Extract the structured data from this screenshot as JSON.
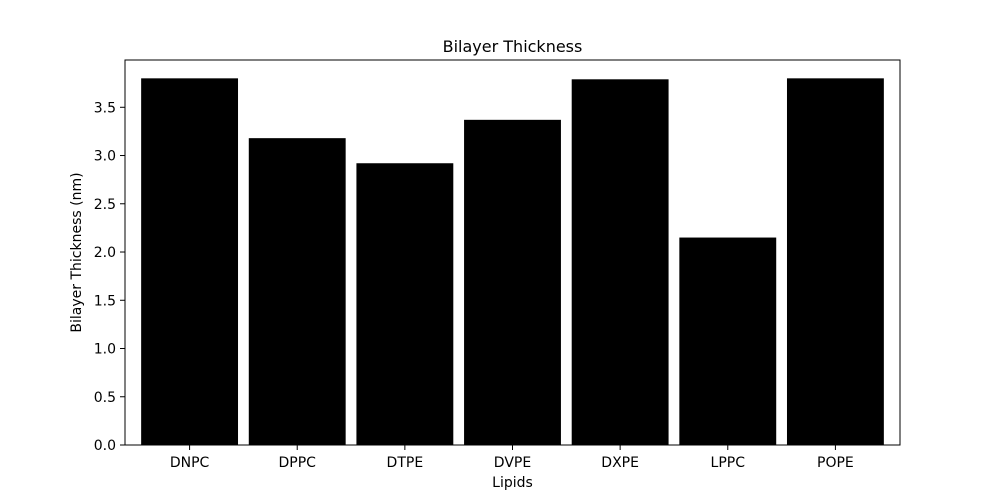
{
  "chart_data": {
    "type": "bar",
    "title": "Bilayer Thickness",
    "xlabel": "Lipids",
    "ylabel": "Bilayer Thickness (nm)",
    "categories": [
      "DNPC",
      "DPPC",
      "DTPE",
      "DVPE",
      "DXPE",
      "LPPC",
      "POPE"
    ],
    "values": [
      3.8,
      3.18,
      2.92,
      3.37,
      3.79,
      2.15,
      3.8
    ],
    "ylim": [
      0,
      3.99
    ],
    "yticks": [
      {
        "value": 0.0,
        "label": "0.0"
      },
      {
        "value": 0.5,
        "label": "0.5"
      },
      {
        "value": 1.0,
        "label": "1.0"
      },
      {
        "value": 1.5,
        "label": "1.5"
      },
      {
        "value": 2.0,
        "label": "2.0"
      },
      {
        "value": 2.5,
        "label": "2.5"
      },
      {
        "value": 3.0,
        "label": "3.0"
      },
      {
        "value": 3.5,
        "label": "3.5"
      }
    ],
    "bar_color": "#000000",
    "grid": false,
    "legend": "none"
  }
}
